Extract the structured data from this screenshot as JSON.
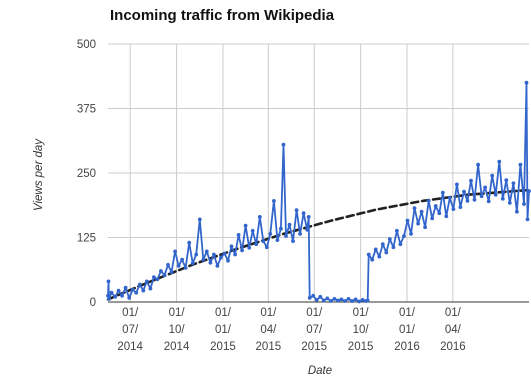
{
  "chart_data": {
    "type": "line",
    "title": "Incoming traffic from Wikipedia",
    "xlabel": "Date",
    "ylabel": "Views per day",
    "x_range": [
      "2014-05-18",
      "2016-08-30"
    ],
    "ylim": [
      0,
      500
    ],
    "y_ticks": [
      0,
      125,
      250,
      375,
      500
    ],
    "x_ticks": [
      {
        "date": "2014-07-01",
        "label": [
          "01/",
          "07/",
          "2014"
        ]
      },
      {
        "date": "2014-10-01",
        "label": [
          "01/",
          "10/",
          "2014"
        ]
      },
      {
        "date": "2015-01-01",
        "label": [
          "01/",
          "01/",
          "2015"
        ]
      },
      {
        "date": "2015-04-01",
        "label": [
          "01/",
          "04/",
          "2015"
        ]
      },
      {
        "date": "2015-07-01",
        "label": [
          "01/",
          "07/",
          "2015"
        ]
      },
      {
        "date": "2015-10-01",
        "label": [
          "01/",
          "10/",
          "2015"
        ]
      },
      {
        "date": "2016-01-01",
        "label": [
          "01/",
          "01/",
          "2016"
        ]
      },
      {
        "date": "2016-04-01",
        "label": [
          "01/",
          "04/",
          "2016"
        ]
      }
    ],
    "grid": true,
    "legend": "none",
    "series": [
      {
        "role": "daily views",
        "color": "#3366cc",
        "points": [
          [
            "2014-05-18",
            12
          ],
          [
            "2014-05-19",
            40
          ],
          [
            "2014-05-20",
            6
          ],
          [
            "2014-05-25",
            18
          ],
          [
            "2014-06-01",
            10
          ],
          [
            "2014-06-08",
            22
          ],
          [
            "2014-06-15",
            12
          ],
          [
            "2014-06-22",
            28
          ],
          [
            "2014-06-29",
            8
          ],
          [
            "2014-07-06",
            24
          ],
          [
            "2014-07-13",
            18
          ],
          [
            "2014-07-20",
            34
          ],
          [
            "2014-07-27",
            22
          ],
          [
            "2014-08-03",
            40
          ],
          [
            "2014-08-10",
            26
          ],
          [
            "2014-08-17",
            48
          ],
          [
            "2014-08-24",
            44
          ],
          [
            "2014-08-31",
            60
          ],
          [
            "2014-09-07",
            52
          ],
          [
            "2014-09-14",
            72
          ],
          [
            "2014-09-21",
            58
          ],
          [
            "2014-09-28",
            98
          ],
          [
            "2014-10-05",
            70
          ],
          [
            "2014-10-12",
            82
          ],
          [
            "2014-10-19",
            66
          ],
          [
            "2014-10-26",
            115
          ],
          [
            "2014-11-02",
            75
          ],
          [
            "2014-11-09",
            92
          ],
          [
            "2014-11-16",
            160
          ],
          [
            "2014-11-23",
            82
          ],
          [
            "2014-11-30",
            98
          ],
          [
            "2014-12-07",
            76
          ],
          [
            "2014-12-14",
            92
          ],
          [
            "2014-12-21",
            70
          ],
          [
            "2014-12-28",
            86
          ],
          [
            "2015-01-04",
            94
          ],
          [
            "2015-01-11",
            80
          ],
          [
            "2015-01-18",
            108
          ],
          [
            "2015-01-25",
            92
          ],
          [
            "2015-02-01",
            130
          ],
          [
            "2015-02-08",
            100
          ],
          [
            "2015-02-15",
            148
          ],
          [
            "2015-02-22",
            105
          ],
          [
            "2015-03-01",
            138
          ],
          [
            "2015-03-08",
            112
          ],
          [
            "2015-03-15",
            165
          ],
          [
            "2015-03-22",
            118
          ],
          [
            "2015-03-29",
            106
          ],
          [
            "2015-04-05",
            132
          ],
          [
            "2015-04-12",
            196
          ],
          [
            "2015-04-19",
            120
          ],
          [
            "2015-04-26",
            142
          ],
          [
            "2015-05-01",
            305
          ],
          [
            "2015-05-06",
            128
          ],
          [
            "2015-05-13",
            150
          ],
          [
            "2015-05-20",
            118
          ],
          [
            "2015-05-27",
            178
          ],
          [
            "2015-06-03",
            132
          ],
          [
            "2015-06-10",
            172
          ],
          [
            "2015-06-17",
            140
          ],
          [
            "2015-06-20",
            165
          ],
          [
            "2015-06-22",
            8
          ],
          [
            "2015-06-29",
            12
          ],
          [
            "2015-07-06",
            4
          ],
          [
            "2015-07-13",
            10
          ],
          [
            "2015-07-20",
            3
          ],
          [
            "2015-07-27",
            7
          ],
          [
            "2015-08-03",
            2
          ],
          [
            "2015-08-10",
            6
          ],
          [
            "2015-08-17",
            3
          ],
          [
            "2015-08-24",
            5
          ],
          [
            "2015-08-31",
            2
          ],
          [
            "2015-09-07",
            6
          ],
          [
            "2015-09-14",
            2
          ],
          [
            "2015-09-21",
            5
          ],
          [
            "2015-09-28",
            1
          ],
          [
            "2015-10-05",
            4
          ],
          [
            "2015-10-12",
            2
          ],
          [
            "2015-10-15",
            3
          ],
          [
            "2015-10-17",
            92
          ],
          [
            "2015-10-24",
            82
          ],
          [
            "2015-10-31",
            102
          ],
          [
            "2015-11-07",
            88
          ],
          [
            "2015-11-14",
            112
          ],
          [
            "2015-11-21",
            96
          ],
          [
            "2015-11-28",
            122
          ],
          [
            "2015-12-05",
            106
          ],
          [
            "2015-12-12",
            138
          ],
          [
            "2015-12-19",
            112
          ],
          [
            "2015-12-26",
            128
          ],
          [
            "2016-01-02",
            158
          ],
          [
            "2016-01-09",
            132
          ],
          [
            "2016-01-16",
            182
          ],
          [
            "2016-01-23",
            152
          ],
          [
            "2016-01-30",
            175
          ],
          [
            "2016-02-06",
            145
          ],
          [
            "2016-02-13",
            196
          ],
          [
            "2016-02-20",
            162
          ],
          [
            "2016-02-27",
            186
          ],
          [
            "2016-03-05",
            172
          ],
          [
            "2016-03-12",
            212
          ],
          [
            "2016-03-19",
            166
          ],
          [
            "2016-03-26",
            202
          ],
          [
            "2016-04-02",
            180
          ],
          [
            "2016-04-09",
            228
          ],
          [
            "2016-04-16",
            184
          ],
          [
            "2016-04-23",
            214
          ],
          [
            "2016-04-30",
            196
          ],
          [
            "2016-05-07",
            235
          ],
          [
            "2016-05-14",
            198
          ],
          [
            "2016-05-21",
            266
          ],
          [
            "2016-05-28",
            205
          ],
          [
            "2016-06-04",
            222
          ],
          [
            "2016-06-11",
            195
          ],
          [
            "2016-06-18",
            245
          ],
          [
            "2016-06-25",
            208
          ],
          [
            "2016-07-02",
            272
          ],
          [
            "2016-07-09",
            200
          ],
          [
            "2016-07-16",
            236
          ],
          [
            "2016-07-23",
            192
          ],
          [
            "2016-07-30",
            230
          ],
          [
            "2016-08-06",
            175
          ],
          [
            "2016-08-13",
            266
          ],
          [
            "2016-08-20",
            190
          ],
          [
            "2016-08-25",
            425
          ],
          [
            "2016-08-27",
            160
          ],
          [
            "2016-08-30",
            215
          ]
        ]
      },
      {
        "role": "trend",
        "color": "#222222",
        "style": "dashed",
        "points": [
          [
            "2014-05-18",
            5
          ],
          [
            "2014-08-01",
            36
          ],
          [
            "2014-11-01",
            72
          ],
          [
            "2015-02-01",
            104
          ],
          [
            "2015-05-01",
            132
          ],
          [
            "2015-08-01",
            157
          ],
          [
            "2015-11-01",
            179
          ],
          [
            "2016-02-01",
            196
          ],
          [
            "2016-05-01",
            208
          ],
          [
            "2016-08-30",
            217
          ]
        ]
      }
    ]
  }
}
